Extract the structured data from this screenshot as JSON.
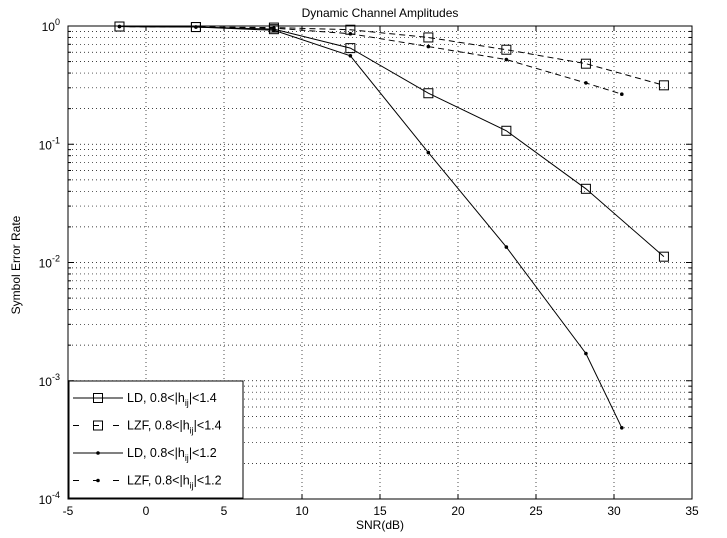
{
  "chart_data": {
    "type": "line",
    "title": "Dynamic Channel Amplitudes",
    "xlabel": "SNR(dB)",
    "ylabel": "Symbol Error Rate",
    "xlim": [
      -5,
      35
    ],
    "ylim": [
      0.0001,
      1
    ],
    "yscale": "log",
    "grid": true,
    "legend_position": "bottom-left",
    "xticks": [
      -5,
      0,
      5,
      10,
      15,
      20,
      25,
      30,
      35
    ],
    "yticks": [
      {
        "value": 0.0001,
        "base": "10",
        "exp": "-4"
      },
      {
        "value": 0.001,
        "base": "10",
        "exp": "-3"
      },
      {
        "value": 0.01,
        "base": "10",
        "exp": "-2"
      },
      {
        "value": 0.1,
        "base": "10",
        "exp": "-1"
      },
      {
        "value": 1,
        "base": "10",
        "exp": "0"
      }
    ],
    "series": [
      {
        "label_main": "LD, 0.8<|h",
        "label_sub": "ij",
        "label_end": "|<1.4",
        "line": "solid",
        "marker": "square",
        "x": [
          -1.7,
          3.2,
          8.2,
          13.1,
          18.1,
          23.1,
          28.2,
          33.2
        ],
        "y": [
          0.99,
          0.98,
          0.94,
          0.65,
          0.27,
          0.13,
          0.042,
          0.0112
        ]
      },
      {
        "label_main": "LZF, 0.8<|h",
        "label_sub": "ij",
        "label_end": "|<1.4",
        "line": "dashed",
        "marker": "square",
        "x": [
          -1.7,
          3.2,
          8.2,
          13.1,
          18.1,
          23.1,
          28.2,
          33.2
        ],
        "y": [
          0.99,
          0.98,
          0.97,
          0.93,
          0.8,
          0.63,
          0.48,
          0.315
        ]
      },
      {
        "label_main": "LD, 0.8<|h",
        "label_sub": "ij",
        "label_end": "|<1.2",
        "line": "solid",
        "marker": "dot",
        "x": [
          -1.7,
          3.2,
          8.2,
          13.1,
          18.1,
          23.1,
          28.2,
          30.5
        ],
        "y": [
          0.99,
          0.98,
          0.92,
          0.56,
          0.085,
          0.0135,
          0.0017,
          0.0004
        ]
      },
      {
        "label_main": "LZF, 0.8<|h",
        "label_sub": "ij",
        "label_end": "|<1.2",
        "line": "dashed",
        "marker": "dot",
        "x": [
          -1.7,
          3.2,
          8.2,
          13.1,
          18.1,
          23.1,
          28.2,
          30.5
        ],
        "y": [
          0.99,
          0.98,
          0.96,
          0.86,
          0.67,
          0.52,
          0.33,
          0.265
        ]
      }
    ]
  }
}
